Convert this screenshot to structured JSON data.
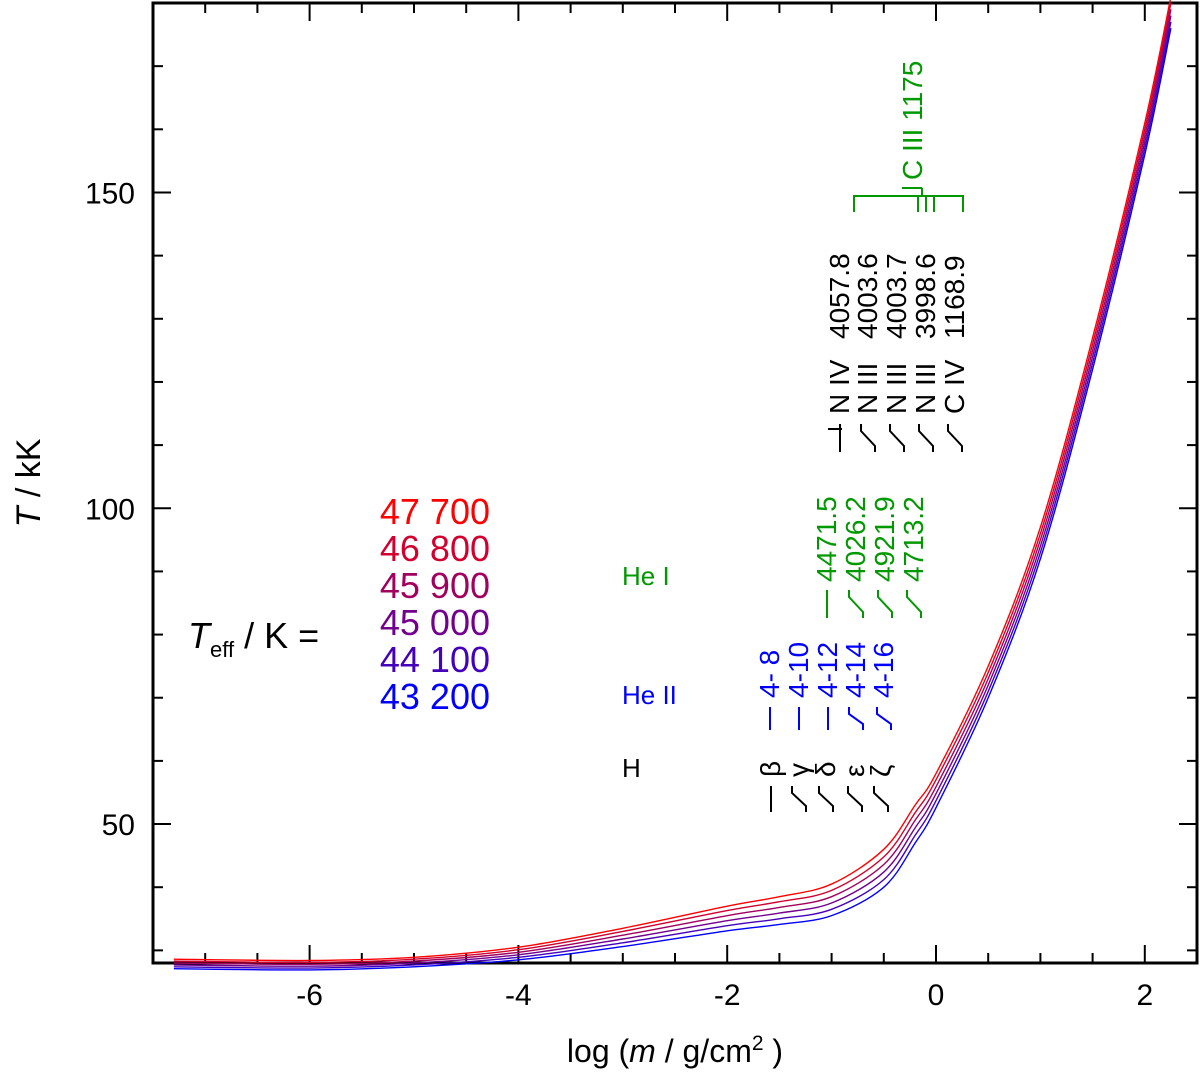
{
  "chart_data": {
    "type": "line",
    "xlabel": {
      "prefix": "log (",
      "var": "m",
      "unit": " / g/cm",
      "sup": "2",
      "suffix": " )"
    },
    "ylabel": {
      "var": "T",
      "unit": " / kK"
    },
    "xlim": [
      -7.5,
      2.5
    ],
    "ylim": [
      28,
      180
    ],
    "x_ticks": [
      -6,
      -4,
      -2,
      0,
      2
    ],
    "x_tick_labels": [
      "-6",
      "-4",
      "-2",
      "0",
      "2"
    ],
    "y_ticks": [
      50,
      100,
      150
    ],
    "y_tick_labels": [
      "50",
      "100",
      "150"
    ],
    "x_minor_step": 0.5,
    "y_minor_step": 10,
    "legend": {
      "title_var": "T",
      "title_sub": "eff",
      "title_unit": " / K =",
      "placement": "middle-left"
    },
    "series": [
      {
        "name": "47 700",
        "color": "#ff0000",
        "x": [
          -7.3,
          -6,
          -5,
          -4,
          -3,
          -2,
          -1.5,
          -1,
          -0.5,
          -0.2,
          0,
          0.5,
          1,
          1.5,
          2,
          2.25
        ],
        "y": [
          28.6,
          28.4,
          28.9,
          30.5,
          33.5,
          37,
          38.5,
          40.5,
          46,
          53,
          58,
          75,
          97,
          127,
          161,
          181
        ]
      },
      {
        "name": "46 800",
        "color": "#d1002e",
        "x": [
          -7.3,
          -6,
          -5,
          -4,
          -3,
          -2,
          -1.5,
          -1,
          -0.5,
          -0.2,
          0,
          0.5,
          1,
          1.5,
          2,
          2.25
        ],
        "y": [
          28.3,
          28.1,
          28.6,
          30.1,
          33,
          36.3,
          37.7,
          39.5,
          44.8,
          51.8,
          57,
          74,
          96,
          126,
          160,
          180
        ]
      },
      {
        "name": "45 900",
        "color": "#a1005e",
        "x": [
          -7.3,
          -6,
          -5,
          -4,
          -3,
          -2,
          -1.5,
          -1,
          -0.5,
          -0.2,
          0,
          0.5,
          1,
          1.5,
          2,
          2.25
        ],
        "y": [
          28,
          27.8,
          28.3,
          29.7,
          32.4,
          35.5,
          36.8,
          38.5,
          43.6,
          50.6,
          55.9,
          73,
          95,
          125,
          159,
          179
        ]
      },
      {
        "name": "45 000",
        "color": "#72008d",
        "x": [
          -7.3,
          -6,
          -5,
          -4,
          -3,
          -2,
          -1.5,
          -1,
          -0.5,
          -0.2,
          0,
          0.5,
          1,
          1.5,
          2,
          2.25
        ],
        "y": [
          27.7,
          27.5,
          28,
          29.3,
          31.8,
          34.7,
          35.9,
          37.5,
          42.4,
          49.4,
          54.8,
          72,
          94,
          124,
          158,
          178
        ]
      },
      {
        "name": "44 100",
        "color": "#4400bb",
        "x": [
          -7.3,
          -6,
          -5,
          -4,
          -3,
          -2,
          -1.5,
          -1,
          -0.5,
          -0.2,
          0,
          0.5,
          1,
          1.5,
          2,
          2.25
        ],
        "y": [
          27.4,
          27.2,
          27.7,
          28.9,
          31.2,
          33.9,
          35,
          36.5,
          41.2,
          48.2,
          53.7,
          71,
          93,
          123,
          157,
          177
        ]
      },
      {
        "name": "43 200",
        "color": "#0000ff",
        "x": [
          -7.3,
          -6,
          -5,
          -4,
          -3,
          -2,
          -1.5,
          -1,
          -0.5,
          -0.2,
          0,
          0.5,
          1,
          1.5,
          2,
          2.25
        ],
        "y": [
          27.1,
          26.9,
          27.4,
          28.5,
          30.6,
          33.1,
          34.1,
          35.5,
          40,
          47,
          52.6,
          70,
          92,
          122,
          156,
          176
        ]
      }
    ],
    "annotations": {
      "groups": [
        {
          "name": "H",
          "color": "#000000"
        },
        {
          "name": "He II",
          "color": "#0000ff"
        },
        {
          "name": "He I",
          "color": "#009900"
        }
      ],
      "h_lines": [
        "β",
        "γ",
        "δ",
        "ε",
        "ζ"
      ],
      "he2_lines": [
        "4- 8",
        "4-10",
        "4-12",
        "4-14",
        "4-16"
      ],
      "he1_lines": [
        "4471.5",
        "4026.2",
        "4921.9",
        "4713.2"
      ],
      "metal_lines": [
        {
          "ion": "N IV",
          "wavelength": "4057.8"
        },
        {
          "ion": "N III",
          "wavelength": "4003.6"
        },
        {
          "ion": "N III",
          "wavelength": "4003.7"
        },
        {
          "ion": "N III",
          "wavelength": "3998.6"
        },
        {
          "ion": "C IV",
          "wavelength": "1168.9"
        }
      ],
      "c3_line": {
        "ion": "C III",
        "wavelength": "1175"
      }
    },
    "colors": {
      "he1": "#009900",
      "he2": "#0000ff",
      "h": "#000000",
      "metal": "#000000"
    }
  }
}
